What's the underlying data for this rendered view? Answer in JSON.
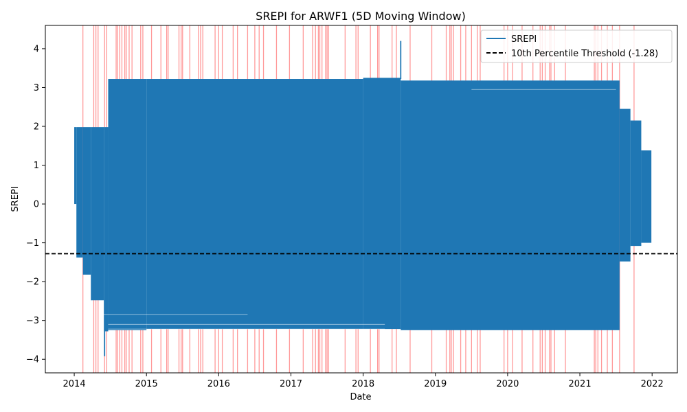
{
  "chart_data": {
    "type": "line",
    "title": "SREPI for ARWF1 (5D Moving Window)",
    "xlabel": "Date",
    "ylabel": "SREPI",
    "x_ticks": [
      "2014",
      "2015",
      "2016",
      "2017",
      "2018",
      "2019",
      "2020",
      "2021",
      "2022"
    ],
    "y_ticks": [
      "−4",
      "−3",
      "−2",
      "−1",
      "0",
      "1",
      "2",
      "3",
      "4"
    ],
    "xlim": [
      2013.6,
      2022.35
    ],
    "ylim": [
      -4.35,
      4.6
    ],
    "grid": false,
    "legend_position": "top-right",
    "colors": {
      "series": "#1f77b4",
      "threshold": "#000000",
      "drought_band": "#ff0000"
    },
    "series": [
      {
        "name": "SREPI",
        "envelope": [
          {
            "x_start": 2014.0,
            "x_end": 2014.03,
            "min": 0.0,
            "max": 1.98
          },
          {
            "x_start": 2014.03,
            "x_end": 2014.12,
            "min": -1.38,
            "max": 1.98
          },
          {
            "x_start": 2014.12,
            "x_end": 2014.23,
            "min": -1.82,
            "max": 1.98
          },
          {
            "x_start": 2014.23,
            "x_end": 2014.41,
            "min": -2.48,
            "max": 1.98
          },
          {
            "x_start": 2014.41,
            "x_end": 2014.47,
            "min": -3.28,
            "max": 1.98
          },
          {
            "x_start": 2014.47,
            "x_end": 2015.0,
            "min": -3.25,
            "max": 3.22
          },
          {
            "x_start": 2015.0,
            "x_end": 2018.0,
            "min": -3.22,
            "max": 3.22
          },
          {
            "x_start": 2018.0,
            "x_end": 2018.52,
            "min": -3.22,
            "max": 3.25
          },
          {
            "x_start": 2018.52,
            "x_end": 2021.55,
            "min": -3.25,
            "max": 3.18
          },
          {
            "x_start": 2021.55,
            "x_end": 2021.7,
            "min": -1.48,
            "max": 2.45
          },
          {
            "x_start": 2021.7,
            "x_end": 2021.85,
            "min": -1.08,
            "max": 2.15
          },
          {
            "x_start": 2021.85,
            "x_end": 2021.99,
            "min": -1.0,
            "max": 1.38
          }
        ],
        "spikes": [
          {
            "x": 2014.42,
            "y": -3.92
          },
          {
            "x": 2018.52,
            "y": 4.2
          }
        ]
      },
      {
        "name": "10th Percentile Threshold (-1.28)",
        "y": -1.28
      }
    ],
    "highlight_bands_x": [
      2014.12,
      2014.27,
      2014.3,
      2014.33,
      2014.42,
      2014.45,
      2014.58,
      2014.6,
      2014.63,
      2014.66,
      2014.7,
      2014.72,
      2014.76,
      2014.8,
      2014.92,
      2014.95,
      2015.07,
      2015.2,
      2015.28,
      2015.3,
      2015.45,
      2015.48,
      2015.5,
      2015.6,
      2015.72,
      2015.75,
      2015.78,
      2015.95,
      2016.0,
      2016.05,
      2016.2,
      2016.26,
      2016.4,
      2016.5,
      2016.56,
      2016.62,
      2016.8,
      2016.98,
      2017.17,
      2017.3,
      2017.34,
      2017.38,
      2017.4,
      2017.43,
      2017.48,
      2017.5,
      2017.52,
      2017.75,
      2017.9,
      2017.93,
      2018.1,
      2018.2,
      2018.22,
      2018.4,
      2018.46,
      2018.65,
      2018.95,
      2019.15,
      2019.2,
      2019.22,
      2019.25,
      2019.35,
      2019.42,
      2019.5,
      2019.58,
      2019.62,
      2019.95,
      2020.0,
      2020.07,
      2020.2,
      2020.35,
      2020.45,
      2020.48,
      2020.52,
      2020.58,
      2020.6,
      2020.65,
      2020.8,
      2021.2,
      2021.22,
      2021.25,
      2021.3,
      2021.38,
      2021.45,
      2021.55,
      2021.75
    ]
  },
  "legend": {
    "items": [
      {
        "label": "SREPI"
      },
      {
        "label": "10th Percentile Threshold (-1.28)"
      }
    ]
  }
}
